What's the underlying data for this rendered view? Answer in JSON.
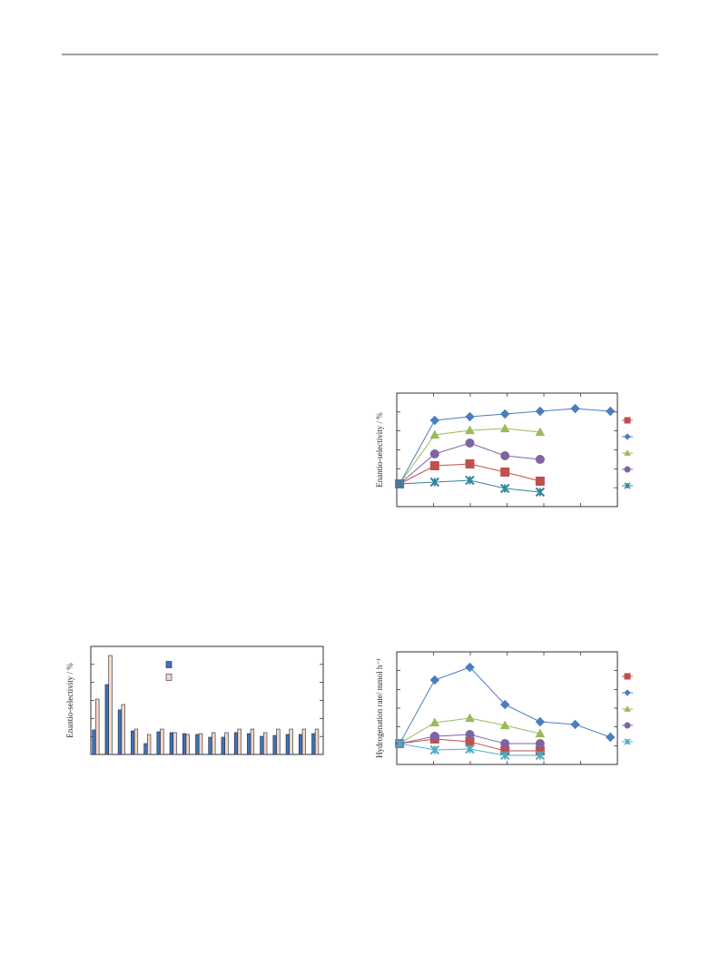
{
  "charts": [
    {
      "chart_data": {
        "type": "line",
        "ylabel": "Enantio-selectivity / %",
        "x": [
          0,
          1,
          2,
          3,
          4,
          5,
          6
        ],
        "xlim": [
          -0.08,
          6.2
        ],
        "ylim": [
          0,
          100
        ],
        "series": [
          {
            "color": "#c0504d",
            "marker": "square",
            "values": [
              20,
              36,
              37.6,
              30.4,
              22.4,
              null,
              null
            ]
          },
          {
            "color": "#4a7ebf",
            "marker": "diamond",
            "values": [
              20,
              76,
              79.2,
              81.6,
              84,
              86.4,
              84
            ]
          },
          {
            "color": "#9bbb59",
            "marker": "triangle",
            "values": [
              20,
              63.2,
              67.2,
              68.8,
              65.6,
              null,
              null
            ]
          },
          {
            "color": "#8064a2",
            "marker": "circle",
            "values": [
              20,
              46.4,
              56,
              44.8,
              41.6,
              null,
              null
            ]
          },
          {
            "color": "#31859c",
            "marker": "cross",
            "values": [
              20,
              21.6,
              23.2,
              16,
              12.8,
              null,
              null
            ]
          }
        ]
      }
    },
    {
      "chart_data": {
        "type": "bar",
        "ylabel": "Enantio-selectivity / %",
        "categories": [
          null,
          null,
          null,
          null,
          null,
          null,
          null,
          null,
          null,
          null,
          null,
          null,
          null,
          null,
          null,
          null,
          null,
          null
        ],
        "ylim": [
          0,
          100
        ],
        "series": [
          {
            "color": "#3f72b5",
            "values": [
              22.7,
              64.7,
              41.2,
              21.8,
              10.1,
              21,
              20.2,
              19.3,
              18.5,
              16,
              16,
              20.2,
              19.3,
              16.8,
              17.6,
              18.5,
              18.5,
              19.3
            ]
          },
          {
            "color": "#f6d6c0",
            "values": [
              51.3,
              91.6,
              46.2,
              23.5,
              18.5,
              23.5,
              20.2,
              18.5,
              19.3,
              20.2,
              20.2,
              23.5,
              23.5,
              20.2,
              23.5,
              23.5,
              23.5,
              23.5
            ]
          }
        ]
      }
    },
    {
      "chart_data": {
        "type": "line",
        "ylabel": "Hydrogenation rate/ mmol h⁻¹",
        "x": [
          0,
          1,
          2,
          3,
          4,
          5,
          6
        ],
        "xlim": [
          -0.08,
          6.2
        ],
        "ylim": [
          0,
          100
        ],
        "series": [
          {
            "color": "#c0504d",
            "marker": "square",
            "values": [
              18.5,
              22.6,
              20.2,
              12.1,
              12.1,
              null,
              null
            ]
          },
          {
            "color": "#4a7ebf",
            "marker": "diamond",
            "values": [
              18.5,
              75,
              86.3,
              53.2,
              37.9,
              35.5,
              24.2
            ]
          },
          {
            "color": "#9bbb59",
            "marker": "triangle",
            "values": [
              18.5,
              37.1,
              41.1,
              34.7,
              27.4,
              null,
              null
            ]
          },
          {
            "color": "#8064a2",
            "marker": "circle",
            "values": [
              18.5,
              25,
              26.6,
              18.5,
              18.5,
              null,
              null
            ]
          },
          {
            "color": "#4bacc6",
            "marker": "cross",
            "values": [
              18.5,
              12.9,
              13.7,
              8.1,
              8.1,
              null,
              null
            ]
          }
        ]
      }
    }
  ]
}
